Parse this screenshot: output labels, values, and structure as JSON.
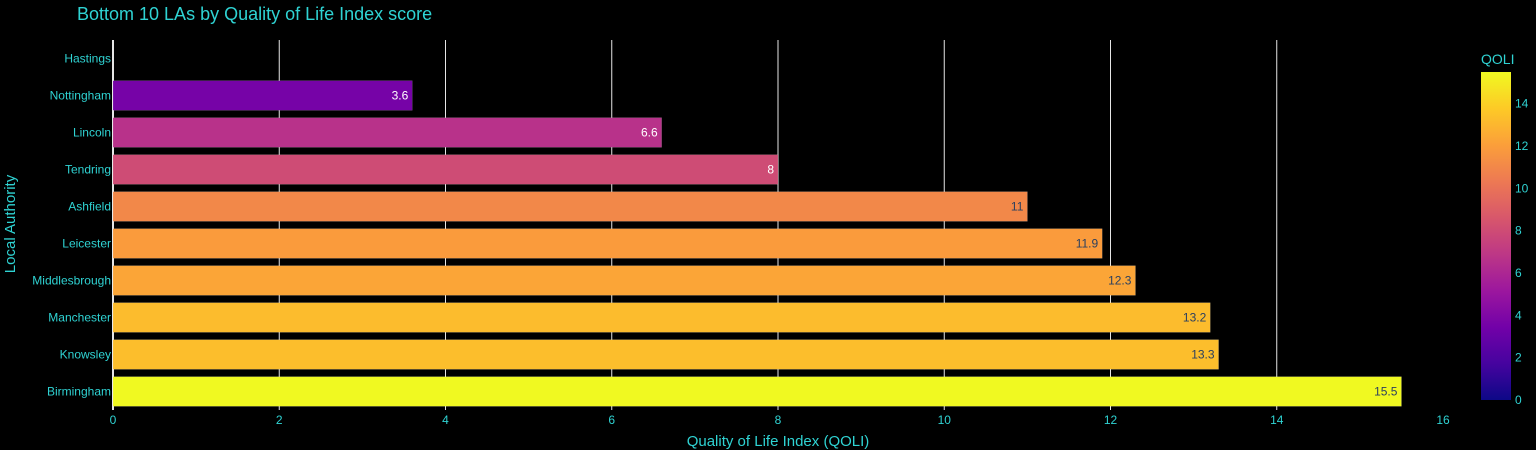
{
  "chart_data": {
    "type": "bar",
    "orientation": "horizontal",
    "title": "Bottom 10 LAs by Quality of Life Index score",
    "xlabel": "Quality of Life Index (QOLI)",
    "ylabel": "Local Authority",
    "xlim": [
      0,
      16
    ],
    "x_ticks": [
      "0",
      "2",
      "4",
      "6",
      "8",
      "10",
      "12",
      "14",
      "16"
    ],
    "grid": "vertical",
    "categories": [
      "Hastings",
      "Nottingham",
      "Lincoln",
      "Tendring",
      "Ashfield",
      "Leicester",
      "Middlesbrough",
      "Manchester",
      "Knowsley",
      "Birmingham"
    ],
    "values": [
      0,
      3.6,
      6.6,
      8,
      11,
      11.9,
      12.3,
      13.2,
      13.3,
      15.5
    ],
    "value_labels": [
      "",
      "3.6",
      "6.6",
      "8",
      "11",
      "11.9",
      "12.3",
      "13.2",
      "13.3",
      "15.5"
    ],
    "colorbar": {
      "title": "QOLI",
      "range": [
        0,
        15.5
      ],
      "ticks": [
        "0",
        "2",
        "4",
        "6",
        "8",
        "10",
        "12",
        "14"
      ],
      "colorscale": "plasma"
    },
    "colors": {
      "background": "#000000",
      "text": "#2fd3d3",
      "grid": "#e6e6e6",
      "label_light": "#ffffff",
      "label_dark": "#2a3f5f"
    }
  }
}
